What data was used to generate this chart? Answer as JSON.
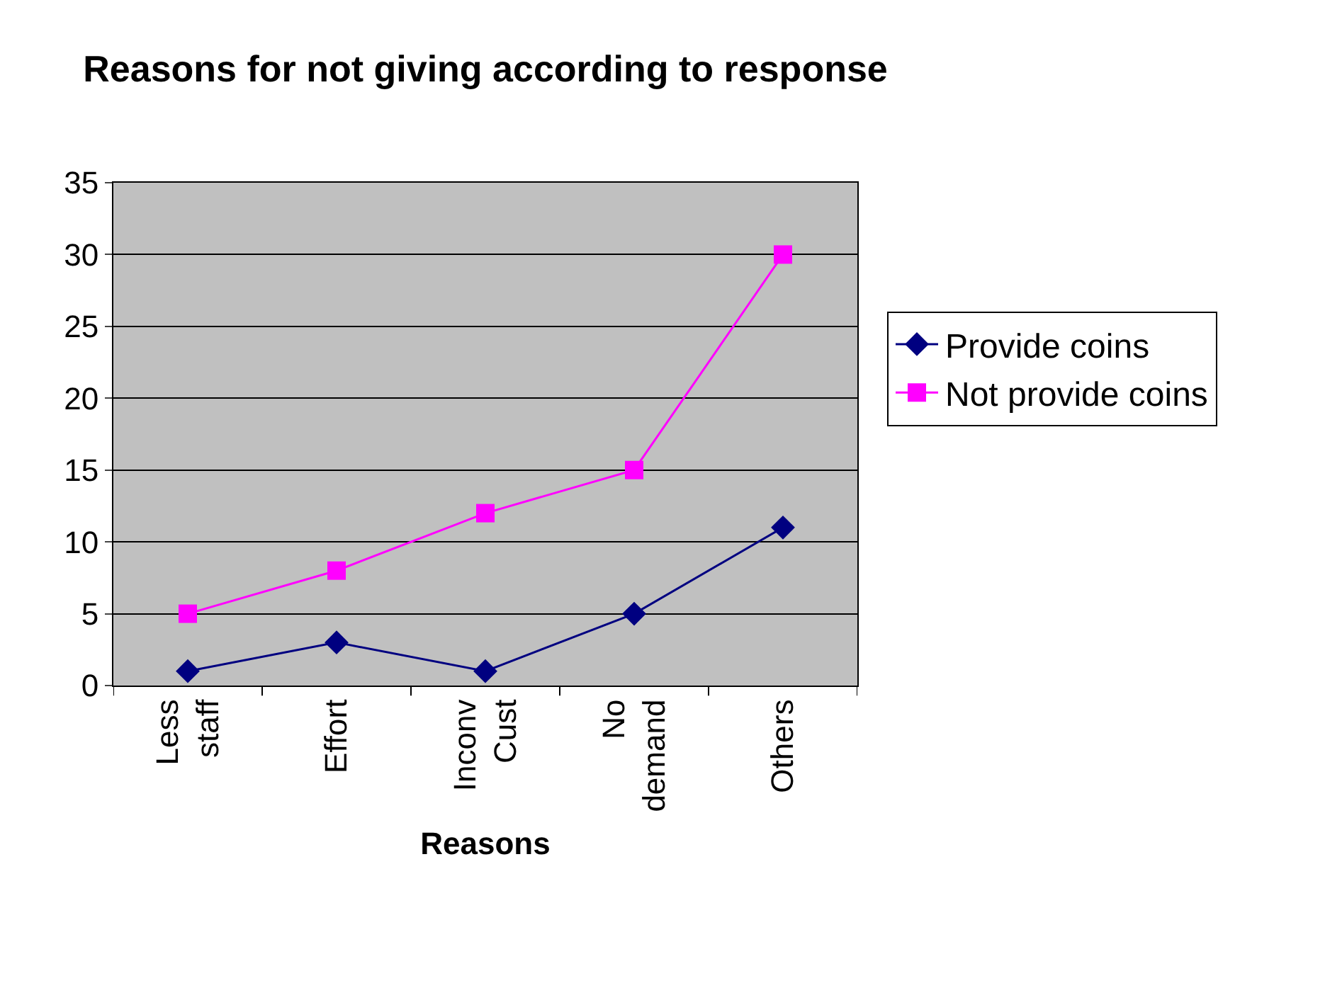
{
  "chart_data": {
    "type": "line",
    "title": "Reasons for not giving according to response",
    "xlabel": "Reasons",
    "categories": [
      "Less staff",
      "Effort",
      "Inconv Cust",
      "No demand",
      "Others"
    ],
    "series": [
      {
        "name": "Provide coins",
        "color": "#000080",
        "marker": "diamond",
        "values": [
          1,
          3,
          1,
          5,
          11
        ]
      },
      {
        "name": "Not provide coins",
        "color": "#ff00ff",
        "marker": "square",
        "values": [
          5,
          8,
          12,
          15,
          30
        ]
      }
    ],
    "ylim": [
      0,
      35
    ],
    "yticks": [
      0,
      5,
      10,
      15,
      20,
      25,
      30,
      35
    ],
    "grid": "y",
    "legend": "right",
    "line_style": "solid"
  }
}
